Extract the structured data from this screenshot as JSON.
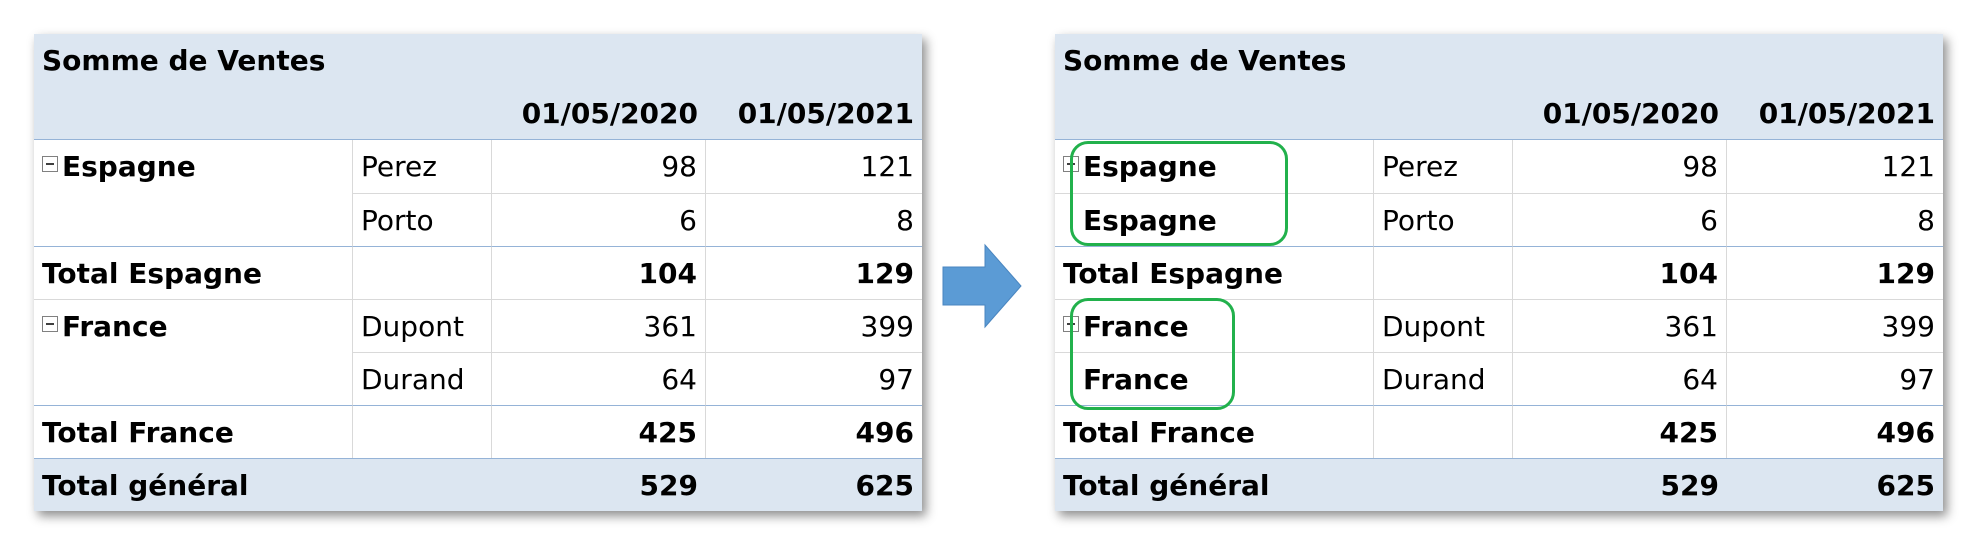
{
  "tables": [
    {
      "title": "Somme de Ventes",
      "columns": [
        "01/05/2020",
        "01/05/2021"
      ],
      "rows": [
        {
          "country": "Espagne",
          "collapse_icon": true,
          "seller": "Perez",
          "values": [
            98,
            121
          ]
        },
        {
          "seller": "Porto",
          "values": [
            6,
            8
          ]
        },
        {
          "total": "Total Espagne",
          "values": [
            104,
            129
          ]
        },
        {
          "country": "France",
          "collapse_icon": true,
          "seller": "Dupont",
          "values": [
            361,
            399
          ]
        },
        {
          "seller": "Durand",
          "values": [
            64,
            97
          ]
        },
        {
          "total": "Total France",
          "values": [
            425,
            496
          ]
        },
        {
          "grand_total": "Total général",
          "values": [
            529,
            625
          ]
        }
      ]
    },
    {
      "title": "Somme de Ventes",
      "columns": [
        "01/05/2020",
        "01/05/2021"
      ],
      "rows": [
        {
          "country": "Espagne",
          "collapse_icon": true,
          "seller": "Perez",
          "values": [
            98,
            121
          ]
        },
        {
          "country": "Espagne",
          "seller": "Porto",
          "values": [
            6,
            8
          ]
        },
        {
          "total": "Total Espagne",
          "values": [
            104,
            129
          ]
        },
        {
          "country": "France",
          "collapse_icon": true,
          "seller": "Dupont",
          "values": [
            361,
            399
          ]
        },
        {
          "country": "France",
          "seller": "Durand",
          "values": [
            64,
            97
          ]
        },
        {
          "total": "Total France",
          "values": [
            425,
            496
          ]
        },
        {
          "grand_total": "Total général",
          "values": [
            529,
            625
          ]
        }
      ]
    }
  ]
}
